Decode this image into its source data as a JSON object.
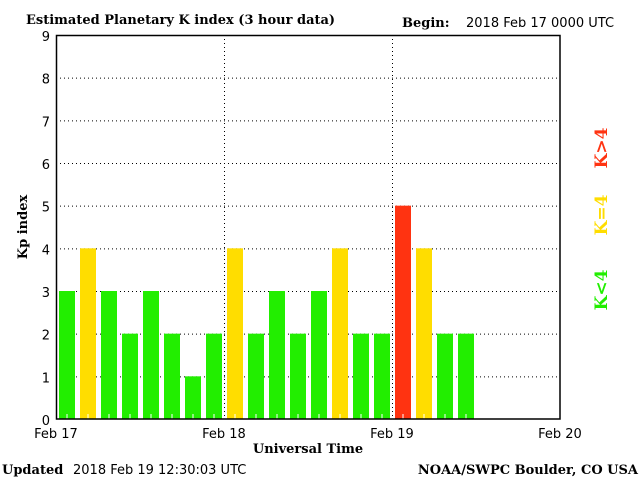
{
  "chart_data": {
    "type": "bar",
    "title": "Estimated Planetary K index (3 hour data)",
    "begin_label": "Begin:",
    "begin_value": "2018 Feb 17 0000 UTC",
    "xlabel": "Universal Time",
    "ylabel": "Kp index",
    "ylim": [
      0,
      9
    ],
    "yticks": [
      "0",
      "1",
      "2",
      "3",
      "4",
      "5",
      "6",
      "7",
      "8",
      "9"
    ],
    "xticks": [
      "Feb 17",
      "Feb 18",
      "Feb 19",
      "Feb 20"
    ],
    "bars_per_day": 8,
    "values": [
      3,
      4,
      3,
      2,
      3,
      2,
      1,
      2,
      4,
      2,
      3,
      2,
      3,
      4,
      2,
      2,
      5,
      4,
      2,
      2
    ],
    "grid": true,
    "legend": [
      {
        "label": "K<4",
        "color": "#22ee00"
      },
      {
        "label": "K=4",
        "color": "#ffdd00"
      },
      {
        "label": "K>4",
        "color": "#ff3311"
      }
    ],
    "legend_placement": "right"
  },
  "footer": {
    "updated_label": "Updated",
    "updated_value": "2018 Feb 19 12:30:03 UTC",
    "source": "NOAA/SWPC Boulder, CO USA"
  }
}
